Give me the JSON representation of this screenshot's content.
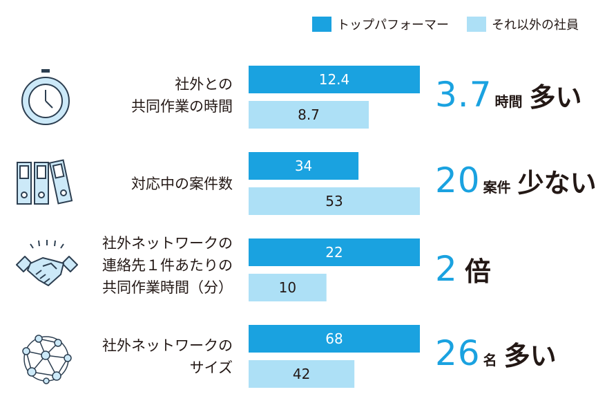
{
  "colors": {
    "top": "#1aa2e0",
    "other": "#ade0f6",
    "text": "#231815",
    "icon_fill": "#cce9f8",
    "icon_stroke": "#2c3e50"
  },
  "legend": {
    "top_label": "トップパフォーマー",
    "other_label": "それ以外の社員"
  },
  "chart_data": {
    "type": "bar",
    "orientation": "horizontal",
    "categories": [
      "社外との共同作業の時間",
      "対応中の案件数",
      "社外ネットワーク1件あたりの共同作業時間（分）",
      "社外ネットワークのサイズ"
    ],
    "series": [
      {
        "name": "トップパフォーマー",
        "values": [
          12.4,
          34,
          22,
          68
        ]
      },
      {
        "name": "それ以外の社員",
        "values": [
          8.7,
          53,
          10,
          42
        ]
      }
    ]
  },
  "rows": [
    {
      "label_lines": [
        "社外との",
        "共同作業の時間"
      ],
      "top_text": "12.4",
      "other_text": "8.7",
      "callout": {
        "num": "3.7",
        "unit": "時間",
        "word": "多い"
      },
      "icon": "stopwatch-icon"
    },
    {
      "label_lines": [
        "対応中の案件数"
      ],
      "top_text": "34",
      "other_text": "53",
      "callout": {
        "num": "20",
        "unit": "案件",
        "word": "少ない"
      },
      "icon": "binders-icon"
    },
    {
      "label_lines": [
        "社外ネットワークの",
        "連絡先１件あたりの",
        "共同作業時間（分）"
      ],
      "top_text": "22",
      "other_text": "10",
      "callout": {
        "num": "2",
        "unit": "",
        "word": "倍"
      },
      "icon": "handshake-icon"
    },
    {
      "label_lines": [
        "社外ネットワークの",
        "サイズ"
      ],
      "top_text": "68",
      "other_text": "42",
      "callout": {
        "num": "26",
        "unit": "名",
        "word": "多い"
      },
      "icon": "network-icon"
    }
  ]
}
